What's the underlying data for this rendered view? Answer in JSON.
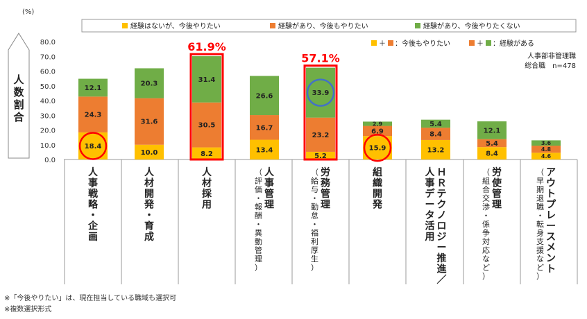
{
  "chart_data": {
    "type": "bar",
    "stacked": true,
    "unit_label": "(%)",
    "ylabel": "人数割合",
    "ylim": [
      0,
      80
    ],
    "yticks": [
      "0.0",
      "10.0",
      "20.0",
      "30.0",
      "40.0",
      "50.0",
      "60.0",
      "70.0",
      "80.0"
    ],
    "grid": false,
    "legend_position": "top",
    "categories": [
      "人事戦略・企画",
      "人材開発・育成",
      "人材採用",
      "人事管理（評価・報酬・異動管理）",
      "労務管理（給与・勤怠・福利厚生）",
      "組織開発",
      "HRテクノロジー推進／人事データ活用",
      "労使管理（組合交渉・係争対応など）",
      "アウトプレースメント（早期退職・転身支援など）"
    ],
    "category_lines": [
      {
        "main": [
          "人事戦略・企画"
        ],
        "sub": []
      },
      {
        "main": [
          "人材開発・育成"
        ],
        "sub": []
      },
      {
        "main": [
          "人材採用"
        ],
        "sub": []
      },
      {
        "main": [
          "人事管理"
        ],
        "sub": [
          "（評価・報酬・異動管理）"
        ]
      },
      {
        "main": [
          "労務管理"
        ],
        "sub": [
          "（給与・勤怠・福利厚生）"
        ]
      },
      {
        "main": [
          "組織開発"
        ],
        "sub": []
      },
      {
        "main": [
          "ＨＲテクノロジー推進／",
          "人事データ活用"
        ],
        "sub": []
      },
      {
        "main": [
          "労使管理"
        ],
        "sub": [
          "（組合交渉・係争対応など）"
        ]
      },
      {
        "main": [
          "アウトプレースメント"
        ],
        "sub": [
          "（早期退職・転身支援など）"
        ]
      }
    ],
    "series": [
      {
        "name": "経験はないが、今後やりたい",
        "color": "#FFC000",
        "values": [
          18.4,
          10.0,
          8.2,
          13.4,
          5.2,
          15.9,
          13.2,
          8.4,
          4.6
        ],
        "labels": [
          "18.4",
          "10.0",
          "8.2",
          "13.4",
          "5.2",
          "15.9",
          "13.2",
          "8.4",
          "4.6"
        ]
      },
      {
        "name": "経験があり、今後もやりたい",
        "color": "#ED7D31",
        "values": [
          24.3,
          31.6,
          30.5,
          16.7,
          23.2,
          6.9,
          8.4,
          5.4,
          4.8
        ],
        "labels": [
          "24.3",
          "31.6",
          "30.5",
          "16.7",
          "23.2",
          "6.9",
          "8.4",
          "5.4",
          "4.8"
        ]
      },
      {
        "name": "経験があり、今後やりたくない",
        "color": "#70AD47",
        "values": [
          12.1,
          20.3,
          31.4,
          26.6,
          33.9,
          2.9,
          5.4,
          12.1,
          3.6
        ],
        "labels": [
          "12.1",
          "20.3",
          "31.4",
          "26.6",
          "33.9",
          "2.9",
          "5.4",
          "12.1",
          "3.6"
        ]
      }
    ],
    "key_legend": [
      {
        "colors": [
          "#FFC000",
          "#ED7D31"
        ],
        "text": "：今後もやりたい"
      },
      {
        "colors": [
          "#ED7D31",
          "#70AD47"
        ],
        "text": "：経験がある"
      }
    ],
    "sample_note": [
      "人事部非管理職",
      "総合職　n=478"
    ],
    "highlight_boxes": [
      {
        "category_index": 2,
        "label": "61.9%"
      },
      {
        "category_index": 4,
        "label": "57.1%"
      }
    ],
    "highlight_circles": [
      {
        "category_index": 0,
        "series_index": 0,
        "color": "#FF0000"
      },
      {
        "category_index": 5,
        "series_index": 0,
        "color": "#FF0000"
      },
      {
        "category_index": 4,
        "series_index": 2,
        "color": "#4472C4"
      }
    ],
    "accent_color": "#FF0000"
  },
  "footnotes": [
    "※「今後やりたい」は、現在担当している職域も選択可",
    "※複数選択形式"
  ]
}
